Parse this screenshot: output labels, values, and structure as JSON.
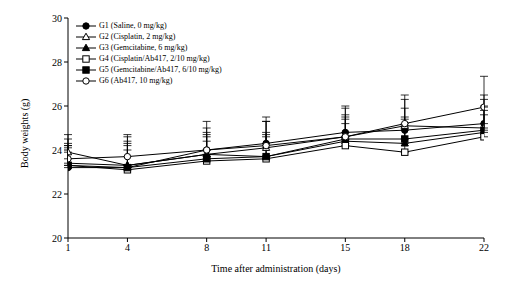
{
  "chart_data": {
    "type": "line",
    "x_label": "Time after administration (days)",
    "y_label": "Body weights (g)",
    "x": [
      1,
      4,
      8,
      11,
      15,
      18,
      22
    ],
    "xlim": [
      1,
      22
    ],
    "xticks": [
      1,
      4,
      8,
      11,
      15,
      18,
      22
    ],
    "ylim": [
      20,
      30
    ],
    "yticks": [
      20,
      22,
      24,
      26,
      28,
      30
    ],
    "grid": false,
    "legend": "upper left",
    "series": [
      {
        "name": "G1 (Saline, 0 mg/kg)",
        "color": "#000000",
        "marker": "filled_circle",
        "values": [
          23.2,
          23.2,
          24.0,
          24.3,
          24.8,
          24.9,
          25.2
        ],
        "errors": [
          1.0,
          1.2,
          1.3,
          1.0,
          1.1,
          1.0,
          1.3
        ]
      },
      {
        "name": "G2 (Cisplatin, 2 mg/kg)",
        "color": "#000000",
        "marker": "open_triangle",
        "values": [
          23.9,
          23.3,
          23.8,
          24.1,
          24.6,
          25.1,
          25.0
        ],
        "errors": [
          0.8,
          1.3,
          1.0,
          1.2,
          1.0,
          1.2,
          1.3
        ]
      },
      {
        "name": "G3 (Gemcitabine, 6 mg/kg)",
        "color": "#000000",
        "marker": "filled_triangle",
        "values": [
          23.4,
          23.3,
          23.8,
          23.7,
          24.4,
          24.3,
          24.8
        ],
        "errors": [
          0.9,
          1.0,
          0.9,
          1.0,
          1.0,
          1.1,
          1.0
        ]
      },
      {
        "name": "G4 (Cisplatin/Ab417, 2/10 mg/kg)",
        "color": "#000000",
        "marker": "open_square",
        "values": [
          23.3,
          23.1,
          23.5,
          23.6,
          24.2,
          23.9,
          24.6
        ],
        "errors": [
          0.8,
          0.9,
          0.9,
          1.0,
          1.0,
          1.1,
          1.0
        ]
      },
      {
        "name": "G5 (Gemcitabine/Ab417, 6/10 mg/kg)",
        "color": "#000000",
        "marker": "filled_square",
        "values": [
          23.3,
          23.2,
          23.6,
          23.7,
          24.5,
          24.5,
          24.9
        ],
        "errors": [
          0.9,
          1.0,
          1.0,
          1.1,
          1.0,
          1.0,
          1.1
        ]
      },
      {
        "name": "G6 (Ab417, 10 mg/kg)",
        "color": "#000000",
        "marker": "open_circle",
        "values": [
          23.6,
          23.7,
          24.0,
          24.2,
          24.6,
          25.2,
          25.95
        ],
        "errors": [
          0.9,
          1.0,
          1.0,
          1.3,
          1.4,
          1.3,
          1.4
        ]
      }
    ]
  }
}
